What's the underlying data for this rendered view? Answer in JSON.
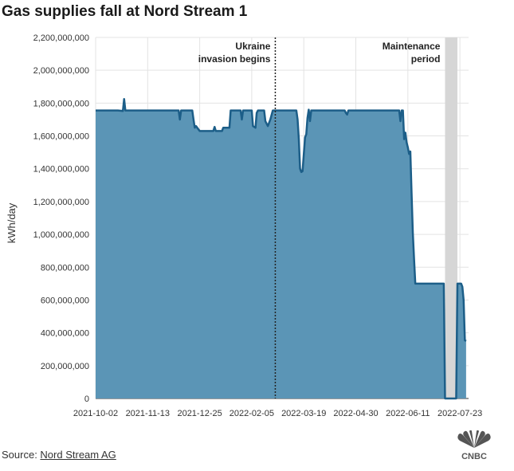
{
  "header": {
    "title": "Gas supplies fall at Nord Stream 1"
  },
  "footer": {
    "source_prefix": "Source: ",
    "source_link": "Nord Stream AG"
  },
  "logo": {
    "text": "CNBC",
    "icon": "nbc-peacock-icon"
  },
  "colors": {
    "area_fill": "#5b95b6",
    "line": "#1c5e88",
    "grid": "#e3e3e3",
    "maintenance": "#d6d6d6"
  },
  "chart_data": {
    "type": "area",
    "title": "Gas supplies fall at Nord Stream 1",
    "xlabel": "",
    "ylabel": "kWh/day",
    "ylim": [
      0,
      2200000000
    ],
    "yticks": [
      0,
      200000000,
      400000000,
      600000000,
      800000000,
      1000000000,
      1200000000,
      1400000000,
      1600000000,
      1800000000,
      2000000000,
      2200000000
    ],
    "ytick_labels": [
      "0",
      "200,000,000",
      "400,000,000",
      "600,000,000",
      "800,000,000",
      "1,000,000,000",
      "1,200,000,000",
      "1,400,000,000",
      "1,600,000,000",
      "1,800,000,000",
      "2,000,000,000",
      "2,200,000,000"
    ],
    "xlim": [
      "2021-10-02",
      "2022-07-30"
    ],
    "xticks": [
      "2021-10-02",
      "2021-11-13",
      "2021-12-25",
      "2022-02-05",
      "2022-03-19",
      "2022-04-30",
      "2022-06-11",
      "2022-07-23"
    ],
    "grid": true,
    "annotations": [
      {
        "date": "2022-02-24",
        "text_lines": [
          "Ukraine",
          "invasion begins"
        ],
        "style": "dotted-line"
      },
      {
        "start": "2022-07-11",
        "end": "2022-07-21",
        "text_lines": [
          "Maintenance",
          "period"
        ],
        "style": "shaded-band"
      }
    ],
    "series": [
      {
        "points": [
          [
            "2021-10-02",
            1755000000
          ],
          [
            "2021-10-20",
            1755000000
          ],
          [
            "2021-10-24",
            1752000000
          ],
          [
            "2021-10-25",
            1825000000
          ],
          [
            "2021-10-26",
            1755000000
          ],
          [
            "2021-12-08",
            1755000000
          ],
          [
            "2021-12-09",
            1700000000
          ],
          [
            "2021-12-10",
            1755000000
          ],
          [
            "2021-12-19",
            1755000000
          ],
          [
            "2021-12-20",
            1700000000
          ],
          [
            "2021-12-21",
            1650000000
          ],
          [
            "2021-12-22",
            1660000000
          ],
          [
            "2021-12-25",
            1630000000
          ],
          [
            "2022-01-05",
            1630000000
          ],
          [
            "2022-01-06",
            1655000000
          ],
          [
            "2022-01-07",
            1630000000
          ],
          [
            "2022-01-12",
            1630000000
          ],
          [
            "2022-01-13",
            1650000000
          ],
          [
            "2022-01-18",
            1650000000
          ],
          [
            "2022-01-19",
            1755000000
          ],
          [
            "2022-01-27",
            1755000000
          ],
          [
            "2022-01-28",
            1700000000
          ],
          [
            "2022-01-29",
            1755000000
          ],
          [
            "2022-02-05",
            1755000000
          ],
          [
            "2022-02-06",
            1660000000
          ],
          [
            "2022-02-08",
            1650000000
          ],
          [
            "2022-02-09",
            1740000000
          ],
          [
            "2022-02-10",
            1755000000
          ],
          [
            "2022-02-15",
            1755000000
          ],
          [
            "2022-02-16",
            1690000000
          ],
          [
            "2022-02-18",
            1660000000
          ],
          [
            "2022-02-20",
            1700000000
          ],
          [
            "2022-02-22",
            1755000000
          ],
          [
            "2022-03-13",
            1755000000
          ],
          [
            "2022-03-14",
            1700000000
          ],
          [
            "2022-03-15",
            1580000000
          ],
          [
            "2022-03-16",
            1400000000
          ],
          [
            "2022-03-17",
            1380000000
          ],
          [
            "2022-03-18",
            1385000000
          ],
          [
            "2022-03-20",
            1590000000
          ],
          [
            "2022-03-21",
            1610000000
          ],
          [
            "2022-03-22",
            1710000000
          ],
          [
            "2022-03-23",
            1760000000
          ],
          [
            "2022-03-24",
            1690000000
          ],
          [
            "2022-03-25",
            1755000000
          ],
          [
            "2022-04-21",
            1755000000
          ],
          [
            "2022-04-22",
            1740000000
          ],
          [
            "2022-04-23",
            1730000000
          ],
          [
            "2022-04-24",
            1755000000
          ],
          [
            "2022-06-04",
            1755000000
          ],
          [
            "2022-06-05",
            1690000000
          ],
          [
            "2022-06-06",
            1755000000
          ],
          [
            "2022-06-07",
            1755000000
          ],
          [
            "2022-06-08",
            1580000000
          ],
          [
            "2022-06-09",
            1620000000
          ],
          [
            "2022-06-10",
            1560000000
          ],
          [
            "2022-06-11",
            1530000000
          ],
          [
            "2022-06-12",
            1490000000
          ],
          [
            "2022-06-13",
            1505000000
          ],
          [
            "2022-06-14",
            1250000000
          ],
          [
            "2022-06-15",
            1010000000
          ],
          [
            "2022-06-16",
            850000000
          ],
          [
            "2022-06-17",
            700000000
          ],
          [
            "2022-07-10",
            700000000
          ],
          [
            "2022-07-11",
            0
          ],
          [
            "2022-07-20",
            0
          ],
          [
            "2022-07-21",
            700000000
          ],
          [
            "2022-07-24",
            700000000
          ],
          [
            "2022-07-25",
            680000000
          ],
          [
            "2022-07-26",
            600000000
          ],
          [
            "2022-07-27",
            355000000
          ],
          [
            "2022-07-28",
            350000000
          ]
        ]
      }
    ]
  }
}
